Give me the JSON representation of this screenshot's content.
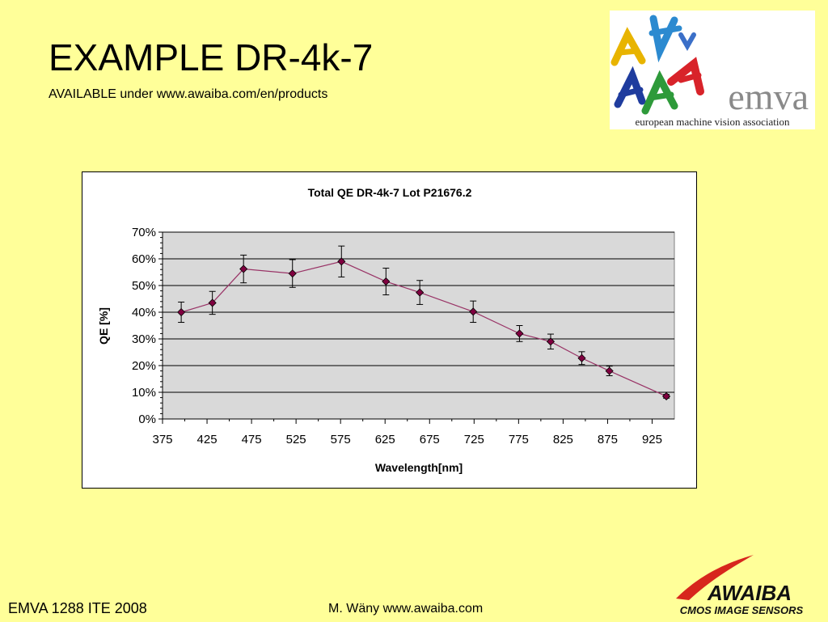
{
  "slide": {
    "title": "EXAMPLE DR-4k-7",
    "subtitle": "AVAILABLE under www.awaiba.com/en/products",
    "footer_left": "EMVA 1288 ITE 2008",
    "footer_mid": "M. Wäny www.awaiba.com"
  },
  "logos": {
    "emva_word": "emva",
    "emva_tagline": "european machine vision association",
    "awaiba_word": "AWAIBA",
    "awaiba_tagline": "CMOS IMAGE SENSORS"
  },
  "colors": {
    "background": "#ffff99",
    "plot_area": "#d9d9d9",
    "series_line": "#993366",
    "marker": "#800040",
    "awaiba_red": "#d7261d"
  },
  "chart_data": {
    "type": "line",
    "title": "Total QE DR-4k-7 Lot P21676.2",
    "xlabel": "Wavelength[nm]",
    "ylabel": "QE [%]",
    "xlim": [
      375,
      950
    ],
    "ylim": [
      0,
      0.7
    ],
    "xticks": [
      "375",
      "425",
      "475",
      "525",
      "575",
      "625",
      "675",
      "725",
      "775",
      "825",
      "875",
      "925"
    ],
    "yticks": [
      "0%",
      "10%",
      "20%",
      "30%",
      "40%",
      "50%",
      "60%",
      "70%"
    ],
    "grid": true,
    "legend": "none",
    "series": [
      {
        "x": [
          396,
          431,
          466,
          521,
          576,
          626,
          664,
          724,
          776,
          811,
          846,
          877,
          941
        ],
        "y": [
          0.4,
          0.435,
          0.562,
          0.545,
          0.59,
          0.515,
          0.474,
          0.402,
          0.32,
          0.29,
          0.228,
          0.18,
          0.085
        ],
        "err": [
          0.038,
          0.043,
          0.052,
          0.052,
          0.058,
          0.05,
          0.045,
          0.04,
          0.03,
          0.028,
          0.024,
          0.018,
          0.007
        ]
      }
    ]
  }
}
